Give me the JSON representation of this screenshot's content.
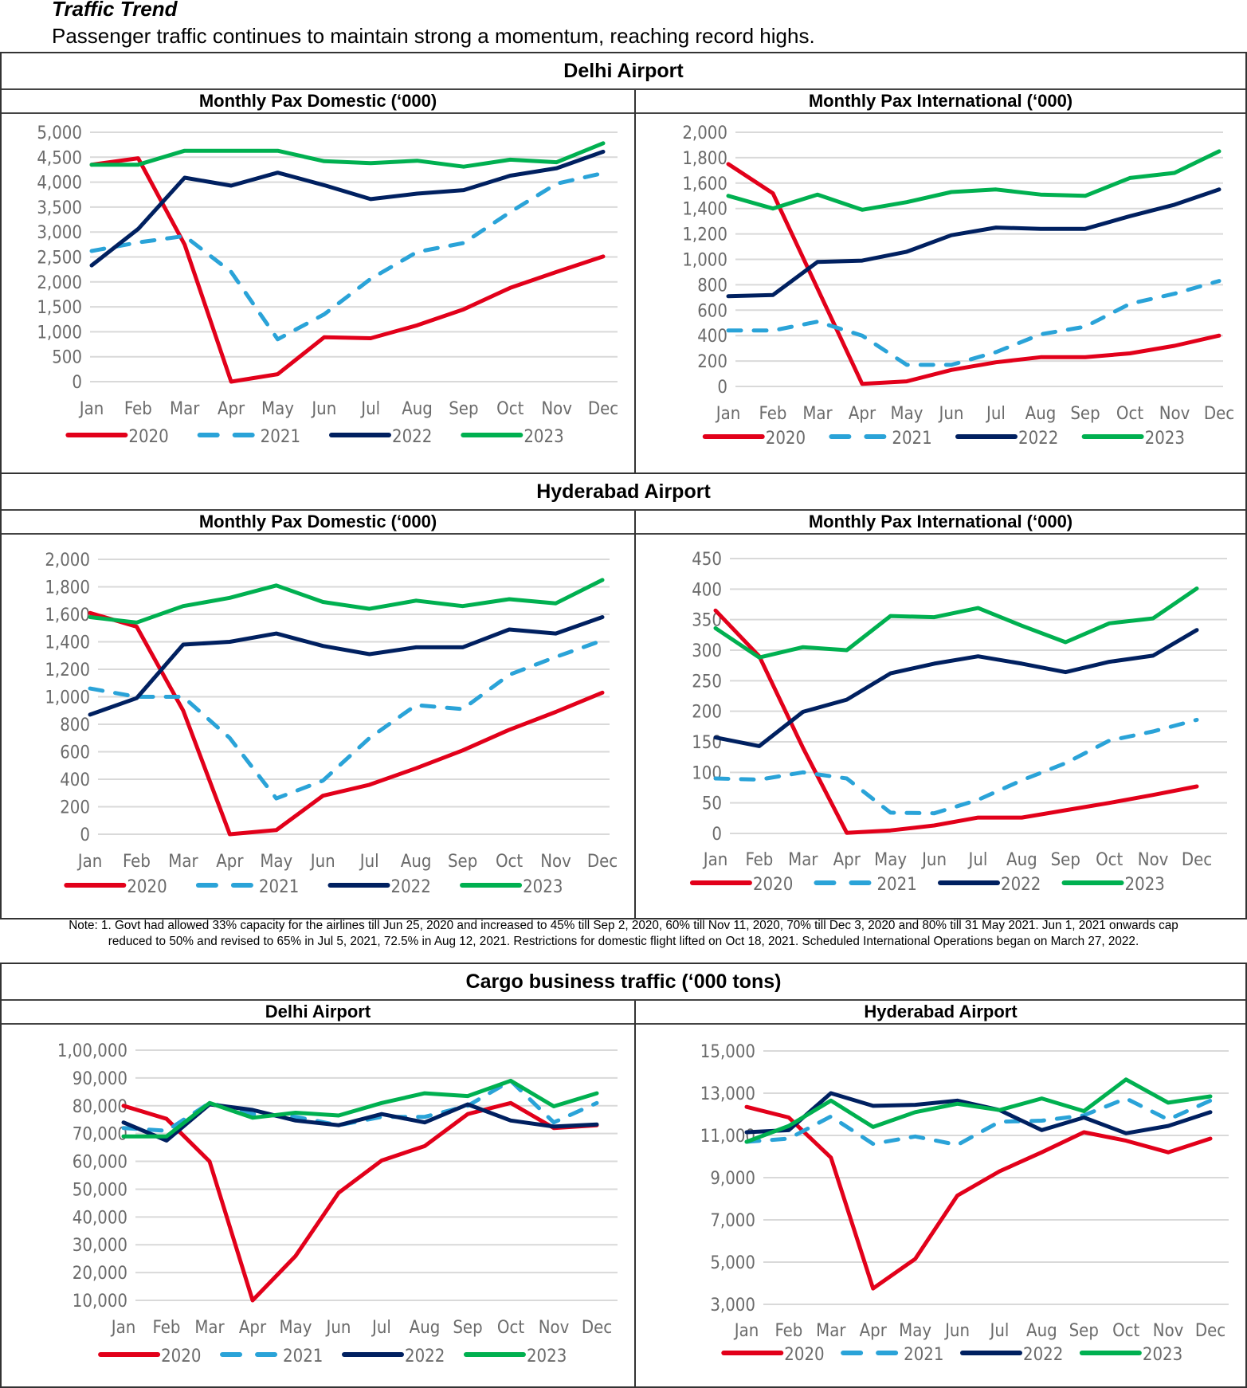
{
  "page": {
    "title": "Traffic Trend",
    "subtitle": "Passenger traffic continues to maintain strong a momentum, reaching record highs."
  },
  "sections": {
    "delhi_header": "Delhi Airport",
    "hyderabad_header": "Hyderabad Airport",
    "cargo_header": "Cargo business traffic (‘000 tons)"
  },
  "note": {
    "line1": "Note: 1. Govt had allowed 33% capacity for the airlines till Jun 25, 2020 and increased to 45% till Sep 2, 2020, 60% till Nov 11, 2020, 70% till Dec 3, 2020 and 80% till 31 May 2021. Jun 1, 2021 onwards cap",
    "line2": "reduced to 50% and revised to 65% in Jul 5, 2021, 72.5% in Aug 12, 2021. Restrictions for domestic flight lifted on Oct 18, 2021. Scheduled International Operations began on March 27, 2022."
  },
  "colors": {
    "2020": "#E2001A",
    "2021": "#2AA3D8",
    "2022": "#002060",
    "2023": "#00B050",
    "grid": "#d9d9d9",
    "axis_text": "#6b6b6b"
  },
  "chart_data": [
    {
      "id": "delhi-domestic",
      "type": "line",
      "title": "Monthly Pax Domestic (‘000)",
      "categories": [
        "Jan",
        "Feb",
        "Mar",
        "Apr",
        "May",
        "Jun",
        "Jul",
        "Aug",
        "Sep",
        "Oct",
        "Nov",
        "Dec"
      ],
      "yticks": [
        "0",
        "500",
        "1,000",
        "1,500",
        "2,000",
        "2,500",
        "3,000",
        "3,500",
        "4,000",
        "4,500",
        "5,000"
      ],
      "ylim": [
        0,
        5000
      ],
      "grid": true,
      "legend": "bottom",
      "series": [
        {
          "name": "2020",
          "dashed": false,
          "values": [
            4350,
            4480,
            2750,
            0,
            150,
            890,
            870,
            1130,
            1450,
            1880,
            2200,
            2510
          ]
        },
        {
          "name": "2021",
          "dashed": true,
          "values": [
            2620,
            2790,
            2920,
            2200,
            850,
            1350,
            2060,
            2600,
            2780,
            3400,
            3970,
            4180
          ]
        },
        {
          "name": "2022",
          "dashed": false,
          "values": [
            2330,
            3060,
            4090,
            3930,
            4190,
            3940,
            3660,
            3770,
            3840,
            4130,
            4280,
            4610
          ]
        },
        {
          "name": "2023",
          "dashed": false,
          "values": [
            4350,
            4350,
            4630,
            4630,
            4630,
            4420,
            4380,
            4430,
            4310,
            4450,
            4400,
            4780
          ]
        }
      ]
    },
    {
      "id": "delhi-international",
      "type": "line",
      "title": "Monthly Pax International (‘000)",
      "categories": [
        "Jan",
        "Feb",
        "Mar",
        "Apr",
        "May",
        "Jun",
        "Jul",
        "Aug",
        "Sep",
        "Oct",
        "Nov",
        "Dec"
      ],
      "yticks": [
        "0",
        "200",
        "400",
        "600",
        "800",
        "1,000",
        "1,200",
        "1,400",
        "1,600",
        "1,800",
        "2,000"
      ],
      "ylim": [
        0,
        2000
      ],
      "grid": true,
      "legend": "bottom",
      "series": [
        {
          "name": "2020",
          "dashed": false,
          "values": [
            1750,
            1520,
            770,
            20,
            40,
            130,
            190,
            230,
            230,
            260,
            320,
            400
          ]
        },
        {
          "name": "2021",
          "dashed": true,
          "values": [
            440,
            440,
            510,
            400,
            170,
            170,
            270,
            410,
            470,
            650,
            730,
            830
          ]
        },
        {
          "name": "2022",
          "dashed": false,
          "values": [
            710,
            720,
            980,
            990,
            1060,
            1190,
            1250,
            1240,
            1240,
            1340,
            1430,
            1550
          ]
        },
        {
          "name": "2023",
          "dashed": false,
          "values": [
            1500,
            1400,
            1510,
            1390,
            1450,
            1530,
            1550,
            1510,
            1500,
            1640,
            1680,
            1850
          ]
        }
      ]
    },
    {
      "id": "hyderabad-domestic",
      "type": "line",
      "title": "Monthly Pax Domestic (‘000)",
      "categories": [
        "Jan",
        "Feb",
        "Mar",
        "Apr",
        "May",
        "Jun",
        "Jul",
        "Aug",
        "Sep",
        "Oct",
        "Nov",
        "Dec"
      ],
      "yticks": [
        "0",
        "200",
        "400",
        "600",
        "800",
        "1,000",
        "1,200",
        "1,400",
        "1,600",
        "1,800",
        "2,000"
      ],
      "ylim": [
        0,
        2000
      ],
      "grid": true,
      "legend": "bottom",
      "series": [
        {
          "name": "2020",
          "dashed": false,
          "values": [
            1610,
            1510,
            900,
            0,
            30,
            280,
            360,
            480,
            610,
            760,
            890,
            1030
          ]
        },
        {
          "name": "2021",
          "dashed": true,
          "values": [
            1060,
            1000,
            1000,
            700,
            260,
            390,
            700,
            940,
            910,
            1160,
            1290,
            1410
          ]
        },
        {
          "name": "2022",
          "dashed": false,
          "values": [
            870,
            990,
            1380,
            1400,
            1460,
            1370,
            1310,
            1360,
            1360,
            1490,
            1460,
            1580
          ]
        },
        {
          "name": "2023",
          "dashed": false,
          "values": [
            1580,
            1540,
            1660,
            1720,
            1810,
            1690,
            1640,
            1700,
            1660,
            1710,
            1680,
            1850
          ]
        }
      ]
    },
    {
      "id": "hyderabad-international",
      "type": "line",
      "title": "Monthly Pax International (‘000)",
      "categories": [
        "Jan",
        "Feb",
        "Mar",
        "Apr",
        "May",
        "Jun",
        "Jul",
        "Aug",
        "Sep",
        "Oct",
        "Nov",
        "Dec"
      ],
      "yticks": [
        "0",
        "50",
        "100",
        "150",
        "200",
        "250",
        "300",
        "350",
        "400",
        "450"
      ],
      "ylim": [
        0,
        450
      ],
      "grid": true,
      "legend": "bottom",
      "series": [
        {
          "name": "2020",
          "dashed": false,
          "values": [
            365,
            290,
            140,
            1,
            5,
            13,
            26,
            26,
            38,
            50,
            63,
            77
          ]
        },
        {
          "name": "2021",
          "dashed": true,
          "values": [
            90,
            88,
            100,
            90,
            34,
            33,
            55,
            87,
            115,
            152,
            167,
            186
          ]
        },
        {
          "name": "2022",
          "dashed": false,
          "values": [
            157,
            143,
            199,
            219,
            262,
            278,
            290,
            278,
            264,
            281,
            291,
            333
          ]
        },
        {
          "name": "2023",
          "dashed": false,
          "values": [
            336,
            288,
            305,
            300,
            356,
            354,
            369,
            340,
            313,
            344,
            352,
            401
          ]
        }
      ]
    },
    {
      "id": "cargo-delhi",
      "type": "line",
      "title": "Delhi Airport",
      "categories": [
        "Jan",
        "Feb",
        "Mar",
        "Apr",
        "May",
        "Jun",
        "Jul",
        "Aug",
        "Sep",
        "Oct",
        "Nov",
        "Dec"
      ],
      "yticks": [
        "10,000",
        "20,000",
        "30,000",
        "40,000",
        "50,000",
        "60,000",
        "70,000",
        "80,000",
        "90,000",
        "1,00,000"
      ],
      "ylim": [
        10000,
        100000
      ],
      "grid": true,
      "legend": "bottom",
      "series": [
        {
          "name": "2020",
          "dashed": false,
          "values": [
            80000,
            75300,
            60000,
            10000,
            26000,
            48700,
            60300,
            65500,
            77000,
            81000,
            72000,
            73000
          ]
        },
        {
          "name": "2021",
          "dashed": true,
          "values": [
            72000,
            71000,
            81000,
            77000,
            76000,
            73000,
            76000,
            76000,
            80000,
            89000,
            74000,
            81000
          ]
        },
        {
          "name": "2022",
          "dashed": false,
          "values": [
            74000,
            67500,
            80500,
            78500,
            74700,
            73000,
            77000,
            74000,
            80500,
            74700,
            72500,
            73300
          ]
        },
        {
          "name": "2023",
          "dashed": false,
          "values": [
            69000,
            69000,
            81000,
            75700,
            77500,
            76500,
            81000,
            84500,
            83500,
            89000,
            79800,
            84500
          ]
        }
      ]
    },
    {
      "id": "cargo-hyderabad",
      "type": "line",
      "title": "Hyderabad Airport",
      "categories": [
        "Jan",
        "Feb",
        "Mar",
        "Apr",
        "May",
        "Jun",
        "Jul",
        "Aug",
        "Sep",
        "Oct",
        "Nov",
        "Dec"
      ],
      "yticks": [
        "3,000",
        "5,000",
        "7,000",
        "9,000",
        "11,000",
        "13,000",
        "15,000"
      ],
      "ylim": [
        3000,
        15000
      ],
      "grid": true,
      "legend": "bottom",
      "series": [
        {
          "name": "2020",
          "dashed": false,
          "values": [
            12350,
            11850,
            9950,
            3750,
            5150,
            8150,
            9300,
            10200,
            11150,
            10750,
            10200,
            10850
          ]
        },
        {
          "name": "2021",
          "dashed": true,
          "values": [
            10700,
            10850,
            11900,
            10600,
            10950,
            10550,
            11650,
            11700,
            11950,
            12750,
            11750,
            12650
          ]
        },
        {
          "name": "2022",
          "dashed": false,
          "values": [
            11150,
            11250,
            13000,
            12400,
            12450,
            12650,
            12200,
            11250,
            11850,
            11100,
            11450,
            12100
          ]
        },
        {
          "name": "2023",
          "dashed": false,
          "values": [
            10700,
            11450,
            12650,
            11400,
            12100,
            12500,
            12200,
            12750,
            12150,
            13650,
            12550,
            12850
          ]
        }
      ]
    }
  ]
}
